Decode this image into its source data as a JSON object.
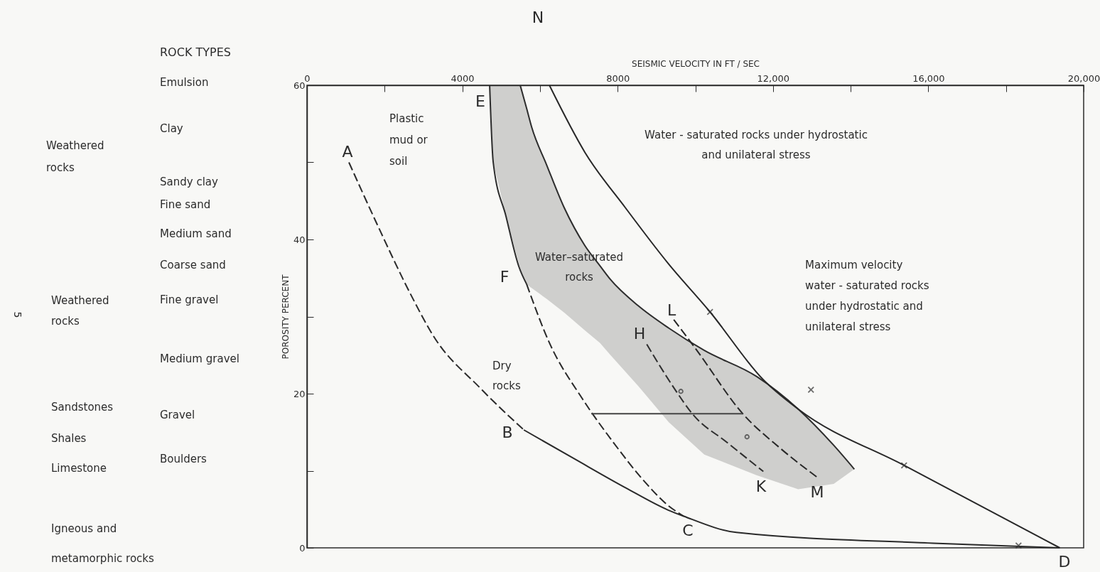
{
  "chart_data": {
    "type": "line",
    "xlabel": "SEISMIC VELOCITY IN FT / SEC",
    "ylabel": "POROSITY PERCENT",
    "xlim": [
      0,
      20000
    ],
    "ylim": [
      0,
      60
    ],
    "xticks": [
      0,
      {
        "value": 2000,
        "label": null
      },
      4000,
      {
        "value": 6000,
        "label": null
      },
      8000,
      {
        "value": 10000,
        "label": null
      },
      {
        "value": 12000,
        "label": "12,000"
      },
      {
        "value": 14000,
        "label": null
      },
      {
        "value": 16000,
        "label": "16,000"
      },
      {
        "value": 18000,
        "label": null
      },
      {
        "value": 20000,
        "label": "20,000"
      }
    ],
    "yticks": [
      0,
      {
        "value": 10,
        "label": null
      },
      20,
      {
        "value": 30,
        "label": null
      },
      40,
      {
        "value": 50,
        "label": null
      },
      60
    ],
    "grid": false,
    "series": [
      {
        "line_style": "dashed",
        "color": "#2b2b2b",
        "x": [
          1080,
          1794,
          2709,
          3240,
          4466,
          5583
        ],
        "values": [
          50,
          42.1,
          32.5,
          27.6,
          20.7,
          15.3
        ]
      },
      {
        "line_style": "solid",
        "color": "#2a2a2a",
        "x": [
          5583,
          6901,
          8201,
          9299,
          9702,
          11056,
          16127,
          19385
        ],
        "values": [
          15.3,
          11.5,
          7.8,
          4.9,
          4.1,
          2,
          0.6,
          0
        ]
      },
      {
        "line_style": "solid",
        "color": "#2c2c2c",
        "x": [
          4704,
          4796,
          5125,
          5455,
          5656
        ],
        "values": [
          60,
          50,
          43,
          36.5,
          34.2
        ]
      },
      {
        "line_style": "dashed",
        "color": "#292929",
        "x": [
          5656,
          6242,
          7084,
          7871,
          8658,
          9299,
          9702
        ],
        "values": [
          34.2,
          26.6,
          19.4,
          13.8,
          8.8,
          5.5,
          4.1
        ]
      },
      {
        "line_style": "solid",
        "color": "#2d2d2d",
        "x": [
          4704,
          4796,
          5125,
          5491,
          5656,
          5784,
          6169,
          6626,
          7157,
          7542,
          7816,
          8530,
          9317,
          10232,
          11587,
          12649,
          13564,
          14095
        ],
        "values": [
          null,
          null,
          null,
          60,
          57,
          54.6,
          49.7,
          44.1,
          39.2,
          36.6,
          34.8,
          31.4,
          28.5,
          25.6,
          22.2,
          18,
          13.3,
          10.2
        ],
        "upper": [
          60,
          60,
          60,
          60,
          57,
          54.6,
          49.7,
          44.1,
          39.2,
          36.6,
          34.8,
          31.4,
          28.5,
          25.6,
          22.2,
          18,
          13.3,
          10.2
        ],
        "lower": [
          60,
          50,
          43,
          36.2,
          34.2,
          33.7,
          32.3,
          30.5,
          28.2,
          26.6,
          25,
          21,
          16.3,
          12.1,
          9.4,
          7.6,
          8.3,
          10.2
        ]
      },
      {
        "line_style": "solid",
        "color": "#282828",
        "x": [
          6242,
          7157,
          8201,
          9299,
          10379,
          11752,
          12649,
          15376,
          19385
        ],
        "values": [
          60,
          51.3,
          44.1,
          36.9,
          30.6,
          21.8,
          18,
          10.7,
          0
        ]
      },
      {
        "line_style": "dashed",
        "color": "#2e2e2e",
        "x": [
          8750,
          9482,
          9921,
          10837,
          11752
        ],
        "values": [
          26.4,
          20.5,
          17.4,
          13.6,
          9.9
        ]
      },
      {
        "line_style": "dashed",
        "color": "#272727",
        "x": [
          9445,
          10013,
          11221,
          12191,
          13180
        ],
        "values": [
          29.6,
          25.8,
          17.4,
          12.9,
          9
        ]
      },
      {
        "line_style": "solid",
        "color": "#444444",
        "x": [
          7322,
          9921,
          11221
        ],
        "values": [
          17.4,
          17.4,
          17.4
        ]
      },
      {
        "type": "scatter",
        "marker": "cross",
        "color": "#303030",
        "x": [
          10379,
          12978,
          15376,
          18323
        ],
        "values": [
          30.6,
          20.5,
          10.7,
          0.3
        ]
      },
      {
        "type": "scatter",
        "marker": "circle",
        "color": "#313131",
        "x": [
          9628,
          11331
        ],
        "values": [
          20.3,
          14.4
        ]
      }
    ],
    "annotations": [
      "A",
      "B",
      "C",
      "E",
      "F",
      "H",
      "L",
      "K",
      "M",
      "Plastic\nmud or\nsoil",
      "Water - saturated rocks under hydrostatic\nand unilateral stress",
      "Water–saturated\nrocks",
      "Maximum velocity\nwater - saturated rocks\nunder hydrostatic and\nunilateral stress",
      "Dry\nrocks",
      "ROCK TYPES",
      "Emulsion",
      "Clay",
      "Weathered\nrocks",
      "Sandy clay",
      "Fine sand",
      "Medium sand",
      "Coarse sand",
      "Weathered\nrocks",
      "Fine gravel",
      "Medium gravel",
      "Sandstones",
      "Gravel",
      "Shales",
      "Boulders",
      "Limestone",
      "Igneous and\nmetamorphic rocks",
      "N",
      "D",
      "5"
    ]
  }
}
